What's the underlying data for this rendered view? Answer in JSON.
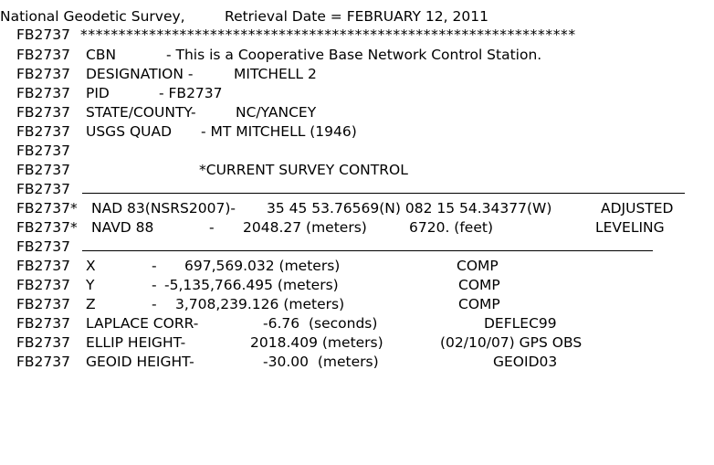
{
  "header": {
    "agency": "National Geodetic Survey,",
    "retrieval": "Retrieval Date = FEBRUARY 12, 2011"
  },
  "pid_prefix": "FB2737",
  "stars": "*****************************************************************",
  "cbn": {
    "key": "CBN",
    "text": "- This is a Cooperative Base Network Control Station."
  },
  "designation": {
    "key": "DESIGNATION -",
    "value": "MITCHELL 2"
  },
  "pid": {
    "key": "PID",
    "value": "- FB2737"
  },
  "state_county": {
    "key": "STATE/COUNTY-",
    "value": "NC/YANCEY"
  },
  "usgs_quad": {
    "key": "USGS QUAD",
    "value": "- MT MITCHELL (1946)"
  },
  "section_title": "*CURRENT SURVEY CONTROL",
  "nad83": {
    "prefix": "FB2737*",
    "datum": "NAD 83(NSRS2007)-",
    "coords": "35 45 53.76569(N) 082 15 54.34377(W)",
    "status": "ADJUSTED"
  },
  "navd88": {
    "prefix": "FB2737*",
    "datum": "NAVD 88",
    "dash": "-",
    "meters": "2048.27 (meters)",
    "feet": "6720. (feet)",
    "status": "LEVELING"
  },
  "xyz": [
    {
      "axis": "X",
      "dash": "-",
      "value": "697,569.032 (meters)",
      "source": "COMP"
    },
    {
      "axis": "Y",
      "dash": "-",
      "value": "-5,135,766.495 (meters)",
      "source": "COMP"
    },
    {
      "axis": "Z",
      "dash": "-",
      "value": "3,708,239.126 (meters)",
      "source": "COMP"
    }
  ],
  "laplace": {
    "key": "LAPLACE CORR-",
    "value": "-6.76  (seconds)",
    "source": "DEFLEC99"
  },
  "ellip": {
    "key": "ELLIP HEIGHT-",
    "value": "2018.409 (meters)",
    "source": "(02/10/07) GPS OBS"
  },
  "geoid": {
    "key": "GEOID HEIGHT-",
    "value": "-30.00  (meters)",
    "source": "GEOID03"
  }
}
